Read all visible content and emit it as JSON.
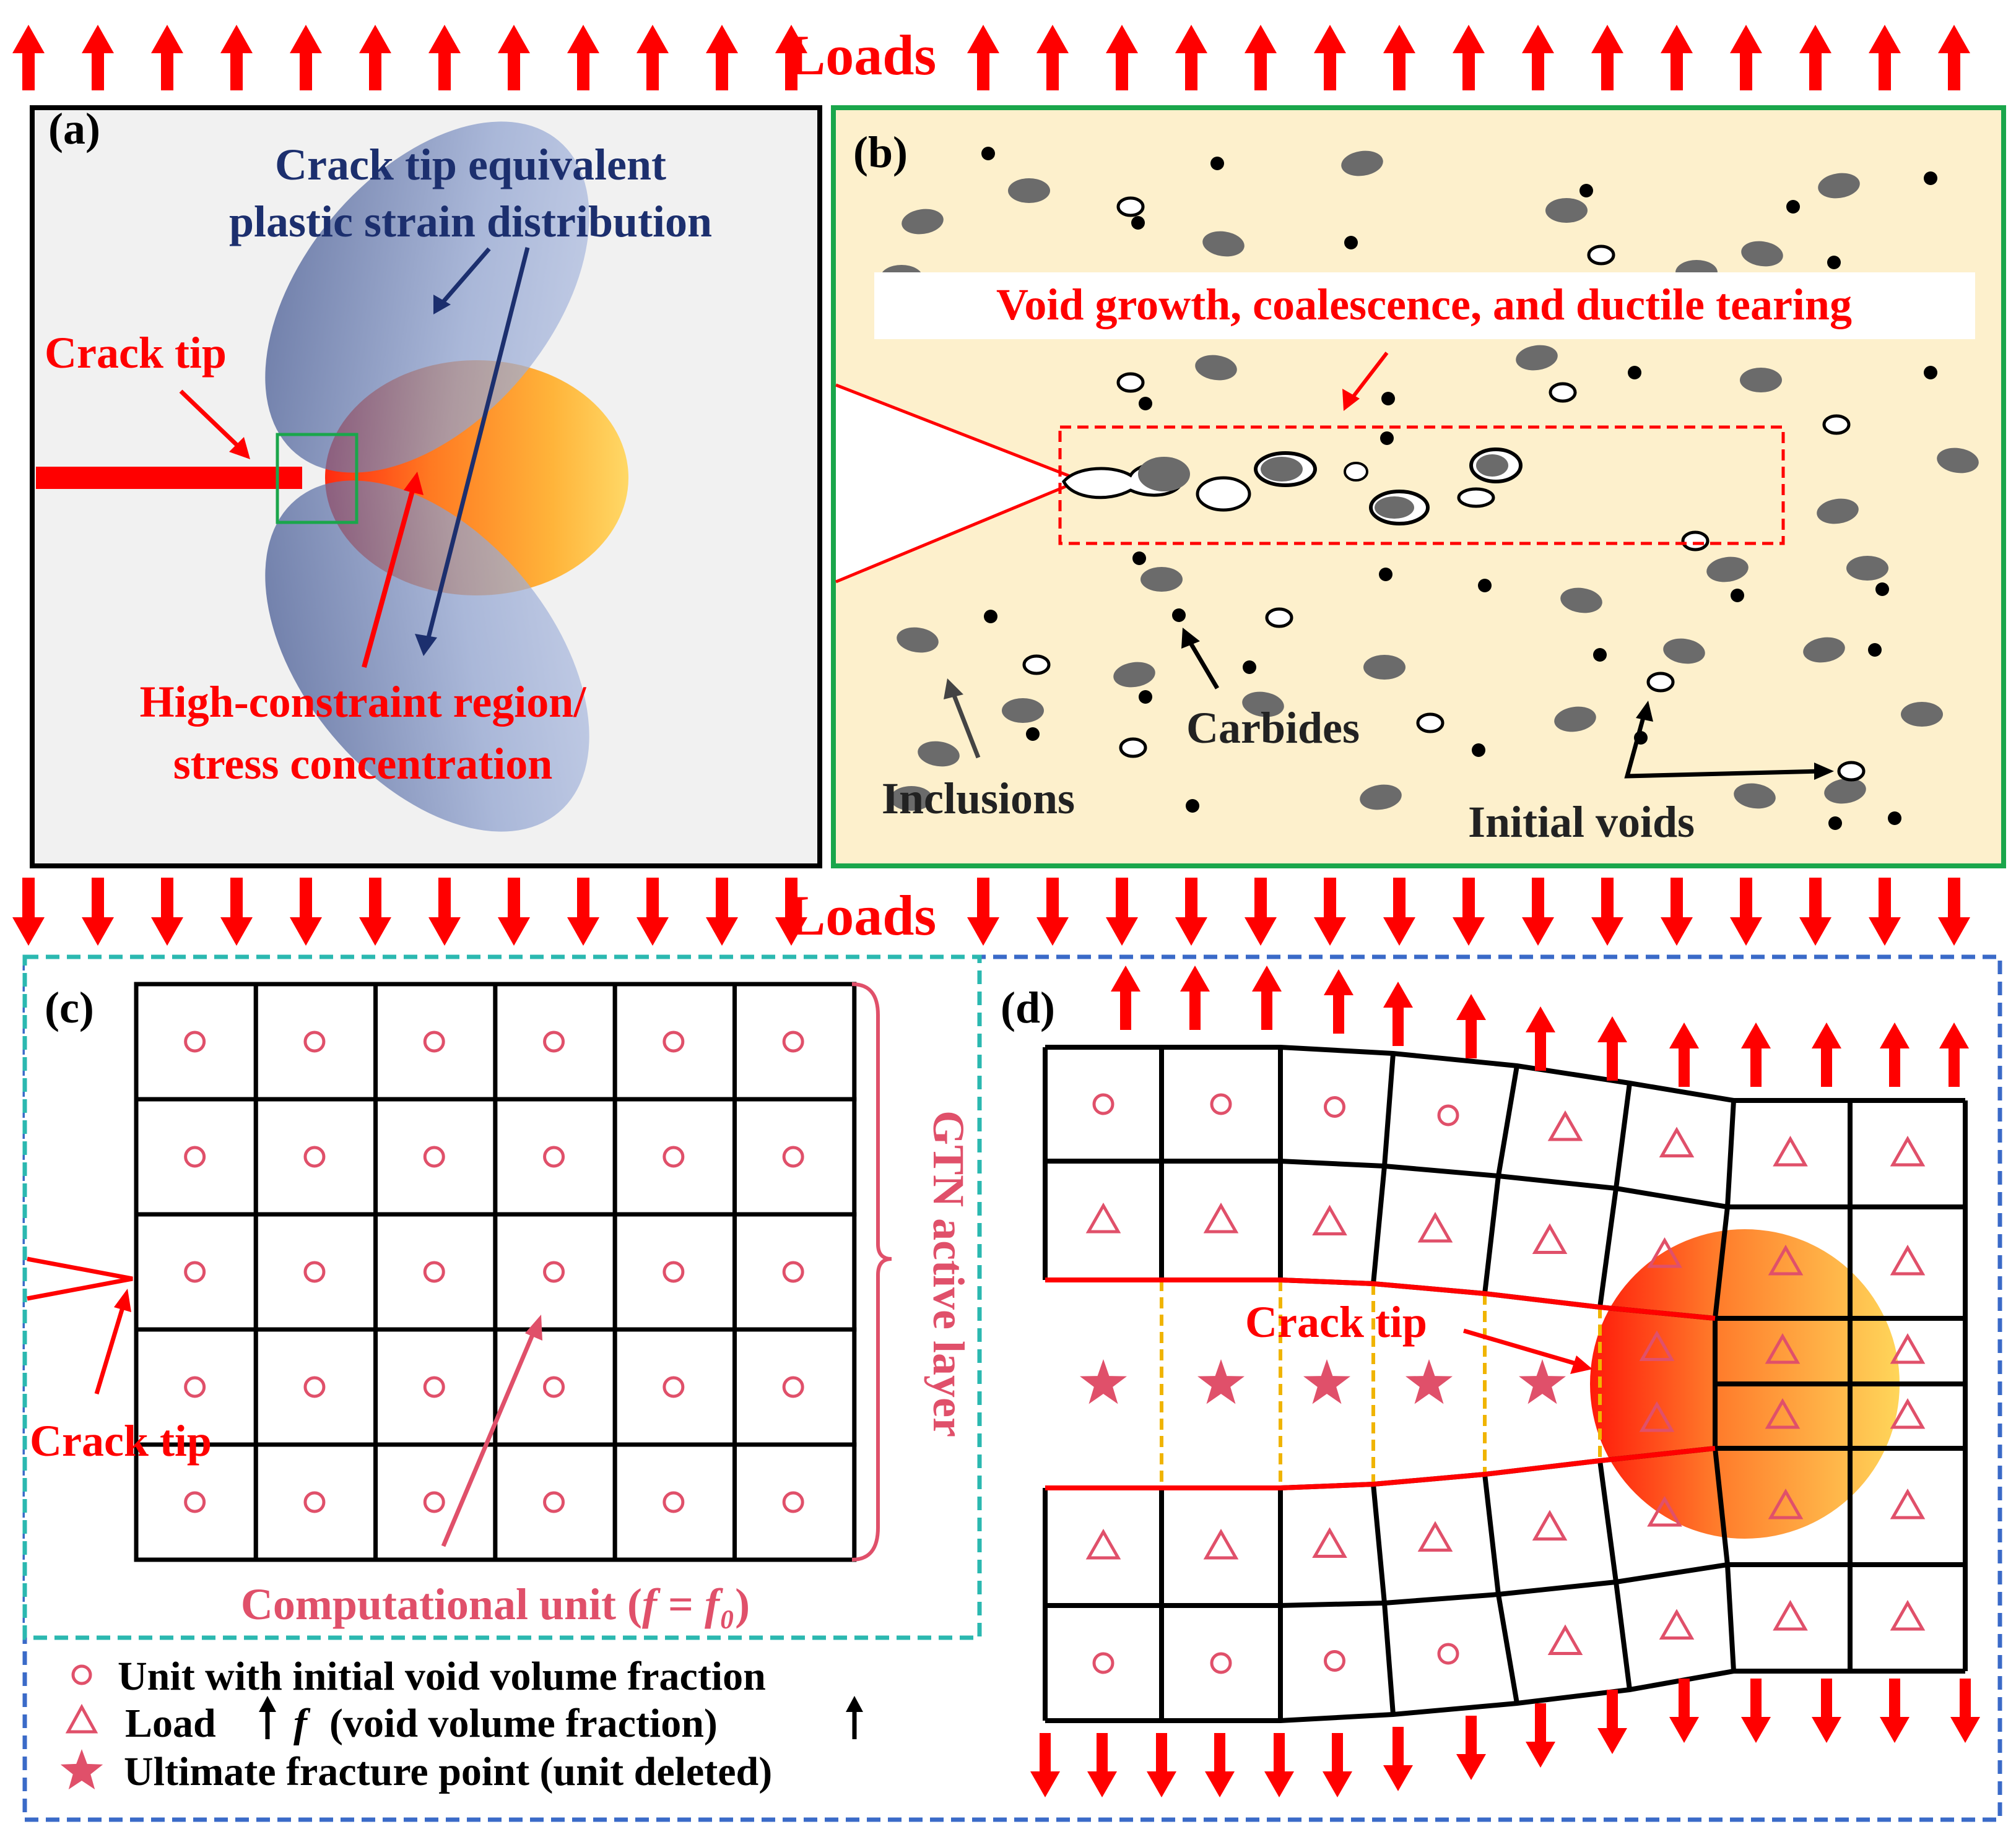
{
  "colors": {
    "load_arrow": "#ff0000",
    "panel_a_border": "#000000",
    "panel_b_border": "#1aa64b",
    "panel_c_border": "#2bb8b0",
    "panel_d_border": "#3a6ac8",
    "panel_a_bg": "#f1f1f1",
    "panel_b_bg": "#fdf0cc",
    "navy_text": "#1c2f6e",
    "red_text": "#ff0000",
    "pink_symbol": "#e0506a",
    "inclusion": "#6b6b6b",
    "carbide": "#000000",
    "dashed_orange": "#f0b400"
  },
  "loads": {
    "top": "Loads",
    "middle": "Loads"
  },
  "panel_a": {
    "label": "(a)",
    "title_line1": "Crack tip equivalent",
    "title_line2": "plastic strain distribution",
    "crack_tip": "Crack tip",
    "region_line1": "High-constraint region/",
    "region_line2": "stress concentration"
  },
  "panel_b": {
    "label": "(b)",
    "banner": "Void growth, coalescence, and ductile tearing",
    "carbides": "Carbides",
    "inclusions": "Inclusions",
    "initial_voids": "Initial voids"
  },
  "panel_c": {
    "label": "(c)",
    "crack_tip": "Crack tip",
    "gtn_layer": "GTN active layer",
    "comp_unit_prefix": "Computational unit (",
    "comp_unit_f": "f",
    "comp_unit_eq": " = ",
    "comp_unit_f0": "f₀",
    "comp_unit_suffix": ")"
  },
  "panel_d": {
    "label": "(d)",
    "crack_tip": "Crack tip"
  },
  "legend": {
    "circle_text": "Unit with initial void volume fraction",
    "triangle_text_1": "Load",
    "triangle_f": "f",
    "triangle_text_2": "(void volume fraction)",
    "star_text": "Ultimate fracture point (unit deleted)"
  }
}
